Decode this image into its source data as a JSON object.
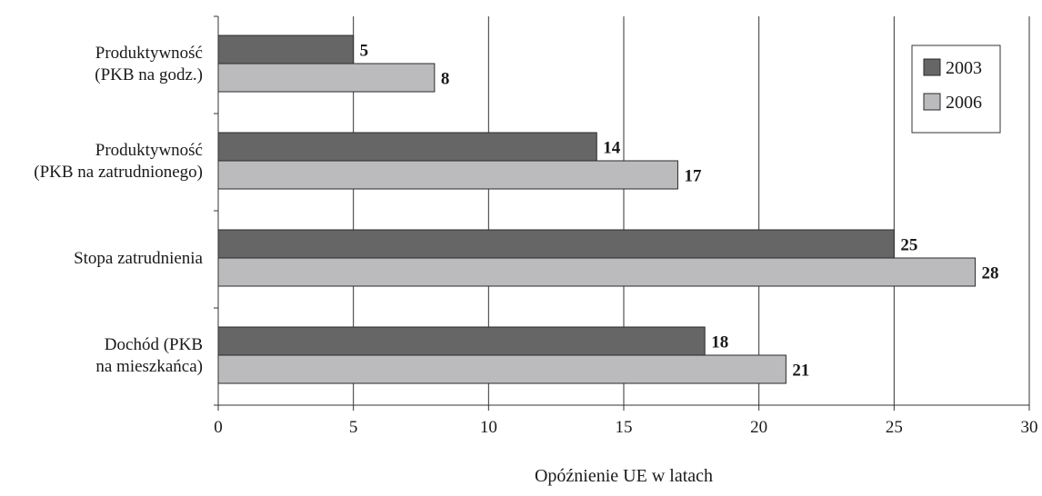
{
  "chart_data": {
    "type": "bar",
    "orientation": "horizontal",
    "categories": [
      [
        "Produktywność",
        "(PKB na godz.)"
      ],
      [
        "Produktywność",
        "(PKB na zatrudnionego)"
      ],
      [
        "Stopa zatrudnienia"
      ],
      [
        "Dochód (PKB",
        "na mieszkańca)"
      ]
    ],
    "series": [
      {
        "name": "2003",
        "values": [
          5,
          14,
          25,
          18
        ],
        "color": "#666666"
      },
      {
        "name": "2006",
        "values": [
          8,
          17,
          28,
          21
        ],
        "color": "#bbbbbd"
      }
    ],
    "xlabel": "Opóźnienie UE w latach",
    "xlim": [
      0,
      30
    ],
    "xticks": [
      0,
      5,
      10,
      15,
      20,
      25,
      30
    ],
    "grid": "vertical",
    "legend_position": "top-right",
    "data_labels": true
  }
}
